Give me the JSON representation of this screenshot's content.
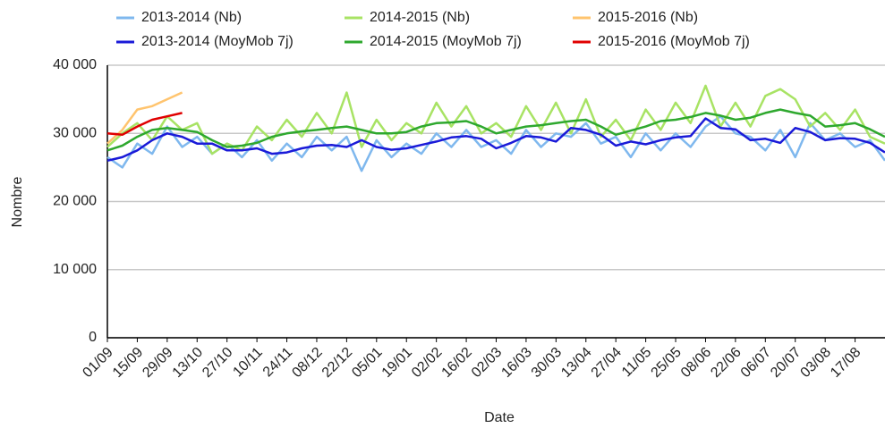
{
  "chart_data": {
    "type": "line",
    "x_label": "Date",
    "y_label": "Nombre",
    "categories": [
      "01/09",
      null,
      "15/09",
      null,
      "29/09",
      null,
      "13/10",
      null,
      "27/10",
      null,
      "10/11",
      null,
      "24/11",
      null,
      "08/12",
      null,
      "22/12",
      null,
      "05/01",
      null,
      "19/01",
      null,
      "02/02",
      null,
      "16/02",
      null,
      "02/03",
      null,
      "16/03",
      null,
      "30/03",
      null,
      "13/04",
      null,
      "27/04",
      null,
      "11/05",
      null,
      "25/05",
      null,
      "08/06",
      null,
      "22/06",
      null,
      "06/07",
      null,
      "20/07",
      null,
      "03/08",
      null,
      "17/08",
      null,
      null
    ],
    "ylim": [
      0,
      40000
    ],
    "yticks": [
      0,
      {
        "value": 10000,
        "label": "10 000"
      },
      {
        "value": 20000,
        "label": "20 000"
      },
      {
        "value": 30000,
        "label": "30 000"
      },
      {
        "value": 40000,
        "label": "40 000"
      }
    ],
    "grid": true,
    "legend": "top",
    "series": [
      {
        "name": "2013-2014 (Nb)",
        "color": "#7fb8ee",
        "values": [
          26500,
          25000,
          28500,
          27000,
          31000,
          28000,
          29500,
          27000,
          28500,
          26500,
          29000,
          26000,
          28500,
          26500,
          29500,
          27500,
          29500,
          24500,
          29000,
          26500,
          28500,
          27000,
          30000,
          28000,
          30500,
          28000,
          29000,
          27000,
          30500,
          28000,
          30000,
          29500,
          31500,
          28500,
          29500,
          26500,
          30000,
          27500,
          30000,
          28000,
          31000,
          32500,
          30000,
          29500,
          27500,
          30500,
          26500,
          31500,
          29000,
          30000,
          28000,
          29000,
          26000
        ]
      },
      {
        "name": "2014-2015 (Nb)",
        "color": "#a8e364",
        "values": [
          28000,
          30000,
          31500,
          29000,
          32500,
          30500,
          31500,
          27000,
          28500,
          27500,
          31000,
          29000,
          32000,
          29500,
          33000,
          30000,
          36000,
          28000,
          32000,
          29000,
          31500,
          30000,
          34500,
          31000,
          34000,
          30000,
          31500,
          29500,
          34000,
          30500,
          34500,
          30000,
          35000,
          29500,
          32000,
          29000,
          33500,
          30500,
          34500,
          31500,
          37000,
          31000,
          34500,
          31000,
          35500,
          36500,
          35000,
          31000,
          33000,
          30500,
          33500,
          29500,
          28500
        ]
      },
      {
        "name": "2015-2016 (Nb)",
        "color": "#ffc46e",
        "values": [
          28500,
          30500,
          33500,
          34000,
          35000,
          36000,
          null,
          null,
          null,
          null,
          null,
          null,
          null,
          null,
          null,
          null,
          null,
          null,
          null,
          null,
          null,
          null,
          null,
          null,
          null,
          null,
          null,
          null,
          null,
          null,
          null,
          null,
          null,
          null,
          null,
          null,
          null,
          null,
          null,
          null,
          null,
          null,
          null,
          null,
          null,
          null,
          null,
          null,
          null,
          null,
          null,
          null,
          null
        ]
      },
      {
        "name": "2013-2014 (MoyMob 7j)",
        "color": "#1a1ad8",
        "values": [
          26000,
          26500,
          27500,
          29000,
          30000,
          29500,
          28500,
          28500,
          27500,
          27500,
          27800,
          27000,
          27200,
          27800,
          28200,
          28300,
          28000,
          29000,
          28000,
          27600,
          27800,
          28300,
          28800,
          29400,
          29600,
          29200,
          27800,
          28600,
          29600,
          29400,
          28800,
          30800,
          30500,
          29800,
          28200,
          28800,
          28400,
          29000,
          29400,
          29600,
          32200,
          30800,
          30600,
          29000,
          29200,
          28600,
          30800,
          30200,
          29000,
          29300,
          29200,
          28600,
          27200
        ]
      },
      {
        "name": "2014-2015 (MoyMob 7j)",
        "color": "#2ea82e",
        "values": [
          27500,
          28200,
          29500,
          30500,
          30800,
          30500,
          30200,
          29000,
          28000,
          28200,
          28600,
          29500,
          30000,
          30300,
          30500,
          30800,
          31000,
          30500,
          30000,
          30000,
          30200,
          31000,
          31500,
          31600,
          31800,
          31000,
          30000,
          30500,
          31000,
          31200,
          31500,
          31800,
          32000,
          31000,
          29800,
          30400,
          31000,
          31800,
          32000,
          32400,
          33000,
          32600,
          32000,
          32300,
          33000,
          33500,
          33000,
          32600,
          31000,
          31200,
          31500,
          30600,
          29500
        ]
      },
      {
        "name": "2015-2016 (MoyMob 7j)",
        "color": "#e00000",
        "values": [
          30000,
          29800,
          31000,
          32000,
          32500,
          33000,
          null,
          null,
          null,
          null,
          null,
          null,
          null,
          null,
          null,
          null,
          null,
          null,
          null,
          null,
          null,
          null,
          null,
          null,
          null,
          null,
          null,
          null,
          null,
          null,
          null,
          null,
          null,
          null,
          null,
          null,
          null,
          null,
          null,
          null,
          null,
          null,
          null,
          null,
          null,
          null,
          null,
          null,
          null,
          null,
          null,
          null,
          null
        ]
      }
    ]
  }
}
